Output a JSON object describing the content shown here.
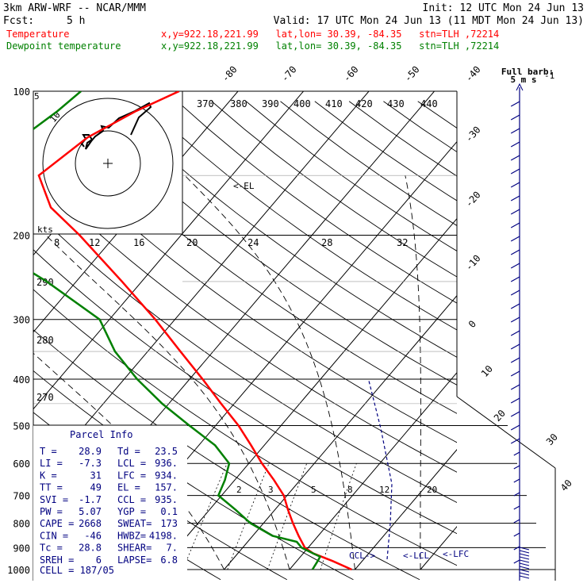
{
  "header": {
    "model": "3km ARW-WRF -- NCAR/MMM",
    "init": "Init: 12 UTC Mon 24 Jun 13",
    "fcst_label": "Fcst:",
    "fcst_value": "5 h",
    "valid": "Valid: 17 UTC Mon 24 Jun 13 (11 MDT Mon 24 Jun 13)"
  },
  "legend": [
    {
      "label": "Temperature",
      "location": "x,y=922.18,221.99   lat,lon= 30.39, -84.35   stn=TLH ,72214",
      "color": "#ff0000"
    },
    {
      "label": "Dewpoint temperature",
      "location": "x,y=922.18,221.99   lat,lon= 30.39, -84.35   stn=TLH ,72214",
      "color": "#008000"
    }
  ],
  "barb_key": {
    "line1": "Full barb:",
    "line2": "5 m s",
    "superscript": "-1"
  },
  "hodograph": {
    "units": "kts",
    "ring_labels": [
      "5",
      "10"
    ]
  },
  "parcel_info": {
    "title": "Parcel Info",
    "rows": [
      [
        "T  =",
        "28.9",
        "Td =",
        "23.5"
      ],
      [
        "LI =",
        "-7.3",
        "LCL =",
        "936."
      ],
      [
        "K  =",
        "31",
        "LFC =",
        "934."
      ],
      [
        "TT =",
        "49",
        "EL =",
        "157."
      ],
      [
        "SVI =",
        "-1.7",
        "CCL =",
        "935."
      ],
      [
        "PW =",
        "5.07",
        "YGP =",
        "0.1"
      ],
      [
        "CAPE =",
        "2668",
        "SWEAT=",
        "173"
      ],
      [
        "CIN =",
        "-46",
        "HWBZ=",
        "4198."
      ],
      [
        "Tc =",
        "28.8",
        "SHEAR=",
        "7."
      ],
      [
        "SREH =",
        "6",
        "LAPSE=",
        "6.8"
      ]
    ],
    "cell": "CELL = 187/05"
  },
  "markers": {
    "el": "<-EL",
    "lcl": "<-LCL",
    "lfc": "<-LFC",
    "ccl": "CCL->"
  },
  "colors": {
    "temperature": "#ff0000",
    "dewpoint": "#008000",
    "text_blue": "#000080",
    "header_text": "#000000"
  },
  "chart_data": {
    "type": "line",
    "title": "",
    "yscale": "log-pressure",
    "ylim_hpa": [
      1000,
      100
    ],
    "pressure_labels": [
      "100",
      "200",
      "300",
      "400",
      "500",
      "600",
      "700",
      "800",
      "900",
      "1000"
    ],
    "isotherm_labels_top": [
      "-80",
      "-70",
      "-60",
      "-50",
      "-40"
    ],
    "isotherm_labels_right": [
      "-30",
      "-20",
      "-10",
      "0",
      "10",
      "20",
      "30",
      "40"
    ],
    "isotherm_labels_mid": [
      "8",
      "12",
      "16",
      "20",
      "24",
      "28",
      "32"
    ],
    "theta_labels_top": [
      "370",
      "380",
      "390",
      "400",
      "410",
      "420",
      "430",
      "440"
    ],
    "theta_labels_left": [
      "290",
      "280",
      "270"
    ],
    "mixing_ratio_labels": [
      "2",
      "3",
      "5",
      "8",
      "12",
      "20"
    ],
    "series": [
      {
        "name": "Temperature",
        "pressure": [
          1000,
          960,
          925,
          900,
          850,
          800,
          750,
          700,
          650,
          600,
          550,
          500,
          450,
          400,
          350,
          300,
          250,
          200,
          175,
          150,
          125,
          110,
          100
        ],
        "temp_c": [
          29.5,
          25.5,
          21.5,
          19.5,
          17.0,
          14.5,
          12.0,
          9.5,
          6.0,
          2.0,
          -2.0,
          -6.5,
          -12.0,
          -18.0,
          -25.0,
          -33.0,
          -43.0,
          -55.5,
          -63.5,
          -69.5,
          -67.0,
          -63.0,
          -59.0
        ]
      },
      {
        "name": "Dewpoint temperature",
        "pressure": [
          1000,
          960,
          940,
          925,
          900,
          875,
          850,
          800,
          750,
          700,
          650,
          600,
          550,
          500,
          450,
          400,
          350,
          300,
          250,
          200,
          175,
          150,
          125,
          110,
          100
        ],
        "temp_c": [
          23.5,
          23.2,
          23.0,
          21.5,
          19.0,
          17.5,
          13.0,
          8.0,
          4.0,
          -0.5,
          -1.5,
          -3.0,
          -7.5,
          -14.0,
          -21.0,
          -28.0,
          -35.0,
          -41.5,
          -54.5,
          -72.0,
          -78.5,
          -80.0,
          -77.0,
          -75.0,
          -74.0
        ]
      }
    ]
  }
}
